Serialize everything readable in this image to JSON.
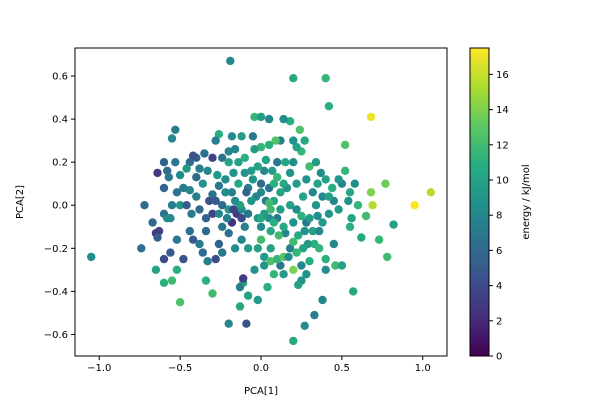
{
  "chart_data": {
    "type": "scatter",
    "xlabel": "PCA[1]",
    "ylabel": "PCA[2]",
    "xlim": [
      -1.15,
      1.15
    ],
    "ylim": [
      -0.7,
      0.73
    ],
    "xticks": [
      -1.0,
      -0.5,
      0.0,
      0.5,
      1.0
    ],
    "xtick_labels": [
      "−1.0",
      "−0.5",
      "0.0",
      "0.5",
      "1.0"
    ],
    "yticks": [
      -0.6,
      -0.4,
      -0.2,
      0.0,
      0.2,
      0.4,
      0.6
    ],
    "ytick_labels": [
      "−0.6",
      "−0.4",
      "−0.2",
      "0.0",
      "0.2",
      "0.4",
      "0.6"
    ],
    "grid": false,
    "colormap": "viridis",
    "colorbar": {
      "label": "energy / kJ/mol",
      "range": [
        0,
        17.5
      ],
      "ticks": [
        0,
        2,
        4,
        6,
        8,
        10,
        12,
        14,
        16
      ],
      "tick_labels": [
        "0",
        "2",
        "4",
        "6",
        "8",
        "10",
        "12",
        "14",
        "16"
      ]
    },
    "points": [
      [
        -1.05,
        -0.24,
        8.5
      ],
      [
        -0.19,
        0.67,
        8.0
      ],
      [
        0.2,
        0.59,
        10.5
      ],
      [
        0.4,
        0.59,
        11.5
      ],
      [
        0.42,
        0.46,
        11.0
      ],
      [
        0.68,
        0.41,
        17.0
      ],
      [
        0.95,
        0.0,
        17.5
      ],
      [
        1.05,
        0.06,
        15.5
      ],
      [
        0.82,
        -0.09,
        10.0
      ],
      [
        0.77,
        0.1,
        13.5
      ],
      [
        0.73,
        -0.16,
        11.5
      ],
      [
        0.78,
        -0.24,
        12.0
      ],
      [
        0.57,
        -0.4,
        10.5
      ],
      [
        0.68,
        0.06,
        14.0
      ],
      [
        0.69,
        0.0,
        15.5
      ],
      [
        0.62,
        -0.15,
        10.5
      ],
      [
        0.55,
        -0.1,
        11.0
      ],
      [
        0.5,
        0.1,
        8.0
      ],
      [
        0.52,
        0.16,
        11.5
      ],
      [
        0.52,
        0.28,
        12.5
      ],
      [
        0.48,
        0.12,
        9.0
      ],
      [
        0.45,
        -0.18,
        8.0
      ],
      [
        0.4,
        -0.3,
        8.5
      ],
      [
        0.38,
        -0.44,
        8.0
      ],
      [
        0.33,
        -0.51,
        7.5
      ],
      [
        0.27,
        -0.56,
        8.5
      ],
      [
        0.2,
        -0.63,
        10.5
      ],
      [
        0.25,
        -0.35,
        9.0
      ],
      [
        0.23,
        -0.37,
        10.0
      ],
      [
        0.33,
        -0.18,
        11.0
      ],
      [
        0.29,
        -0.18,
        9.5
      ],
      [
        0.36,
        -0.2,
        11.5
      ],
      [
        0.3,
        -0.26,
        11.0
      ],
      [
        0.28,
        -0.32,
        9.0
      ],
      [
        0.25,
        -0.28,
        8.0
      ],
      [
        0.2,
        -0.3,
        14.0
      ],
      [
        0.14,
        -0.32,
        9.5
      ],
      [
        0.12,
        -0.28,
        7.0
      ],
      [
        0.08,
        -0.32,
        11.5
      ],
      [
        0.06,
        -0.2,
        10.0
      ],
      [
        0.02,
        -0.24,
        9.5
      ],
      [
        0.04,
        -0.38,
        11.0
      ],
      [
        -0.02,
        -0.44,
        9.5
      ],
      [
        -0.08,
        -0.42,
        10.0
      ],
      [
        -0.11,
        -0.36,
        10.5
      ],
      [
        -0.11,
        -0.34,
        3.0
      ],
      [
        -0.13,
        -0.38,
        7.5
      ],
      [
        -0.13,
        -0.47,
        10.5
      ],
      [
        -0.09,
        -0.55,
        4.5
      ],
      [
        -0.2,
        -0.55,
        8.0
      ],
      [
        -0.3,
        -0.41,
        12.0
      ],
      [
        -0.34,
        -0.35,
        11.0
      ],
      [
        -0.5,
        -0.45,
        12.5
      ],
      [
        -0.55,
        -0.35,
        12.0
      ],
      [
        -0.52,
        -0.3,
        11.0
      ],
      [
        -0.65,
        -0.3,
        10.0
      ],
      [
        -0.56,
        -0.22,
        5.0
      ],
      [
        -0.6,
        -0.25,
        4.0
      ],
      [
        -0.63,
        -0.12,
        3.5
      ],
      [
        -0.65,
        -0.13,
        3.0
      ],
      [
        -0.74,
        -0.2,
        6.5
      ],
      [
        -0.64,
        -0.15,
        5.0
      ],
      [
        -0.67,
        -0.08,
        6.0
      ],
      [
        -0.72,
        0.0,
        6.0
      ],
      [
        -0.6,
        -0.04,
        6.5
      ],
      [
        -0.56,
        -0.06,
        8.0
      ],
      [
        -0.52,
        -0.16,
        7.0
      ],
      [
        -0.48,
        -0.25,
        4.5
      ],
      [
        -0.44,
        -0.12,
        6.5
      ],
      [
        -0.42,
        -0.16,
        5.0
      ],
      [
        -0.38,
        -0.18,
        7.0
      ],
      [
        -0.36,
        -0.22,
        6.0
      ],
      [
        -0.33,
        -0.26,
        7.5
      ],
      [
        -0.28,
        -0.25,
        4.0
      ],
      [
        -0.26,
        -0.18,
        5.5
      ],
      [
        -0.24,
        -0.1,
        7.0
      ],
      [
        -0.2,
        -0.13,
        6.5
      ],
      [
        -0.18,
        -0.08,
        2.5
      ],
      [
        -0.15,
        -0.04,
        3.0
      ],
      [
        -0.12,
        -0.02,
        8.5
      ],
      [
        -0.08,
        -0.04,
        7.0
      ],
      [
        -0.1,
        -0.1,
        7.5
      ],
      [
        -0.12,
        -0.16,
        8.0
      ],
      [
        -0.08,
        -0.2,
        9.5
      ],
      [
        0.0,
        -0.1,
        8.5
      ],
      [
        -0.02,
        -0.06,
        9.0
      ],
      [
        0.05,
        -0.06,
        8.5
      ],
      [
        0.1,
        -0.06,
        7.0
      ],
      [
        0.12,
        -0.02,
        9.5
      ],
      [
        0.08,
        0.02,
        10.5
      ],
      [
        0.03,
        0.02,
        7.0
      ],
      [
        0.0,
        0.06,
        8.5
      ],
      [
        0.05,
        0.08,
        6.5
      ],
      [
        0.08,
        0.1,
        11.0
      ],
      [
        0.12,
        0.06,
        10.0
      ],
      [
        0.16,
        0.08,
        9.0
      ],
      [
        0.18,
        0.0,
        10.0
      ],
      [
        0.22,
        -0.02,
        8.5
      ],
      [
        0.25,
        -0.05,
        11.0
      ],
      [
        0.2,
        -0.08,
        9.0
      ],
      [
        0.15,
        -0.13,
        8.0
      ],
      [
        0.18,
        -0.2,
        7.5
      ],
      [
        0.23,
        -0.14,
        10.5
      ],
      [
        0.27,
        -0.12,
        9.0
      ],
      [
        0.28,
        -0.08,
        7.0
      ],
      [
        0.3,
        -0.06,
        9.5
      ],
      [
        0.32,
        0.06,
        8.0
      ],
      [
        0.28,
        0.12,
        9.0
      ],
      [
        0.3,
        0.18,
        12.0
      ],
      [
        0.35,
        0.1,
        10.0
      ],
      [
        0.34,
        0.2,
        9.5
      ],
      [
        0.37,
        0.15,
        8.5
      ],
      [
        0.4,
        0.12,
        10.0
      ],
      [
        0.44,
        0.08,
        11.0
      ],
      [
        0.38,
        0.04,
        8.0
      ],
      [
        0.42,
        -0.04,
        9.0
      ],
      [
        0.35,
        -0.05,
        8.5
      ],
      [
        0.32,
        -0.12,
        10.0
      ],
      [
        0.27,
        0.3,
        10.5
      ],
      [
        0.25,
        0.25,
        11.5
      ],
      [
        0.24,
        0.35,
        12.5
      ],
      [
        0.22,
        0.27,
        10.0
      ],
      [
        0.2,
        0.3,
        9.0
      ],
      [
        0.18,
        0.39,
        11.0
      ],
      [
        0.14,
        0.4,
        8.5
      ],
      [
        0.12,
        0.3,
        7.5
      ],
      [
        0.09,
        0.3,
        12.5
      ],
      [
        0.05,
        0.28,
        11.0
      ],
      [
        0.03,
        0.21,
        10.0
      ],
      [
        0.0,
        0.27,
        11.5
      ],
      [
        -0.04,
        0.26,
        9.5
      ],
      [
        -0.05,
        0.32,
        7.0
      ],
      [
        -0.04,
        0.41,
        11.5
      ],
      [
        0.0,
        0.41,
        9.5
      ],
      [
        0.05,
        0.4,
        8.0
      ],
      [
        0.2,
        0.2,
        8.5
      ],
      [
        0.18,
        0.15,
        9.0
      ],
      [
        0.15,
        0.2,
        10.5
      ],
      [
        0.1,
        0.2,
        7.0
      ],
      [
        0.07,
        0.16,
        9.5
      ],
      [
        0.02,
        0.16,
        8.0
      ],
      [
        -0.02,
        0.18,
        10.0
      ],
      [
        -0.06,
        0.16,
        9.5
      ],
      [
        -0.1,
        0.22,
        11.0
      ],
      [
        -0.14,
        0.2,
        10.0
      ],
      [
        -0.12,
        0.32,
        9.5
      ],
      [
        -0.16,
        0.26,
        8.0
      ],
      [
        -0.18,
        0.32,
        8.5
      ],
      [
        -0.26,
        0.33,
        11.0
      ],
      [
        -0.24,
        0.22,
        6.5
      ],
      [
        -0.27,
        0.14,
        9.5
      ],
      [
        -0.22,
        0.12,
        8.5
      ],
      [
        -0.17,
        0.15,
        9.0
      ],
      [
        -0.14,
        0.1,
        10.5
      ],
      [
        -0.18,
        0.06,
        7.5
      ],
      [
        -0.22,
        0.06,
        8.5
      ],
      [
        -0.26,
        0.09,
        7.0
      ],
      [
        -0.3,
        0.05,
        6.5
      ],
      [
        -0.32,
        0.02,
        4.5
      ],
      [
        -0.3,
        -0.04,
        3.5
      ],
      [
        -0.34,
        -0.06,
        5.5
      ],
      [
        -0.38,
        -0.02,
        6.0
      ],
      [
        -0.4,
        0.04,
        7.5
      ],
      [
        -0.44,
        0.07,
        8.0
      ],
      [
        -0.48,
        0.08,
        7.0
      ],
      [
        -0.52,
        0.06,
        6.5
      ],
      [
        -0.55,
        0.0,
        7.5
      ],
      [
        -0.58,
        -0.06,
        8.5
      ],
      [
        -0.5,
        0.0,
        9.0
      ],
      [
        -0.46,
        0.0,
        5.0
      ],
      [
        -0.43,
        -0.04,
        7.0
      ],
      [
        -0.4,
        0.13,
        6.0
      ],
      [
        -0.38,
        0.17,
        7.5
      ],
      [
        -0.35,
        0.24,
        6.5
      ],
      [
        -0.33,
        0.16,
        8.0
      ],
      [
        -0.36,
        0.1,
        9.0
      ],
      [
        -0.44,
        0.2,
        6.0
      ],
      [
        -0.4,
        0.22,
        5.5
      ],
      [
        -0.42,
        0.23,
        4.5
      ],
      [
        -0.53,
        0.2,
        7.0
      ],
      [
        -0.53,
        0.35,
        7.5
      ],
      [
        -0.55,
        0.31,
        8.0
      ],
      [
        -0.6,
        0.2,
        5.5
      ],
      [
        -0.58,
        0.16,
        6.0
      ],
      [
        -0.57,
        0.13,
        7.0
      ],
      [
        -0.64,
        0.15,
        3.0
      ],
      [
        -0.6,
        0.08,
        5.5
      ],
      [
        -0.5,
        0.14,
        8.5
      ],
      [
        -0.46,
        0.17,
        9.5
      ],
      [
        -0.3,
        0.22,
        3.5
      ],
      [
        -0.28,
        0.3,
        7.5
      ],
      [
        -0.2,
        0.2,
        10.0
      ],
      [
        -0.08,
        0.08,
        7.5
      ],
      [
        -0.05,
        0.12,
        9.0
      ],
      [
        0.0,
        0.1,
        6.0
      ],
      [
        -0.03,
        0.04,
        8.0
      ],
      [
        -0.06,
        0.02,
        9.0
      ],
      [
        -0.09,
        0.06,
        5.5
      ],
      [
        -0.13,
        0.0,
        10.0
      ],
      [
        -0.16,
        0.02,
        8.5
      ],
      [
        -0.2,
        -0.02,
        9.5
      ],
      [
        -0.24,
        0.0,
        6.0
      ],
      [
        -0.26,
        -0.04,
        8.0
      ],
      [
        -0.21,
        -0.06,
        7.5
      ],
      [
        -0.17,
        -0.02,
        3.5
      ],
      [
        -0.12,
        -0.06,
        4.0
      ],
      [
        0.02,
        -0.04,
        9.5
      ],
      [
        0.08,
        -0.08,
        11.0
      ],
      [
        0.14,
        -0.1,
        10.5
      ],
      [
        0.11,
        -0.14,
        12.0
      ],
      [
        0.06,
        -0.12,
        10.5
      ],
      [
        0.0,
        -0.16,
        12.0
      ],
      [
        -0.02,
        -0.2,
        10.0
      ],
      [
        0.02,
        -0.28,
        9.0
      ],
      [
        0.06,
        -0.26,
        12.5
      ],
      [
        0.1,
        -0.25,
        11.5
      ],
      [
        0.14,
        -0.24,
        13.0
      ],
      [
        0.17,
        -0.24,
        8.5
      ],
      [
        0.2,
        -0.17,
        12.0
      ],
      [
        0.22,
        -0.22,
        11.5
      ],
      [
        0.26,
        -0.2,
        10.0
      ],
      [
        0.4,
        -0.25,
        11.0
      ],
      [
        0.46,
        -0.28,
        12.0
      ],
      [
        0.5,
        -0.28,
        10.0
      ],
      [
        0.54,
        0.02,
        9.0
      ],
      [
        0.58,
        0.1,
        8.5
      ],
      [
        0.55,
        0.06,
        10.5
      ],
      [
        0.6,
        0.0,
        11.5
      ],
      [
        0.65,
        -0.05,
        12.0
      ],
      [
        0.56,
        -0.06,
        10.0
      ],
      [
        0.48,
        -0.02,
        9.5
      ],
      [
        0.45,
        0.02,
        8.0
      ],
      [
        0.42,
        0.04,
        10.0
      ],
      [
        0.38,
        -0.08,
        9.5
      ],
      [
        0.36,
        -0.12,
        8.0
      ],
      [
        0.34,
        0.0,
        9.0
      ],
      [
        0.1,
        0.13,
        11.5
      ],
      [
        0.14,
        0.1,
        10.5
      ],
      [
        0.22,
        0.1,
        9.5
      ],
      [
        0.26,
        0.04,
        10.0
      ],
      [
        0.0,
        -0.06,
        10.5
      ],
      [
        0.06,
        -0.02,
        12.0
      ],
      [
        -0.16,
        -0.2,
        8.5
      ],
      [
        -0.24,
        -0.22,
        7.0
      ],
      [
        -0.04,
        -0.3,
        9.0
      ],
      [
        -0.34,
        -0.12,
        6.0
      ],
      [
        -0.28,
        0.02,
        5.0
      ],
      [
        -0.6,
        -0.36,
        11.0
      ],
      [
        0.05,
        0.01,
        12.0
      ],
      [
        -0.1,
        0.15,
        9.0
      ],
      [
        -0.2,
        0.25,
        8.0
      ]
    ]
  }
}
